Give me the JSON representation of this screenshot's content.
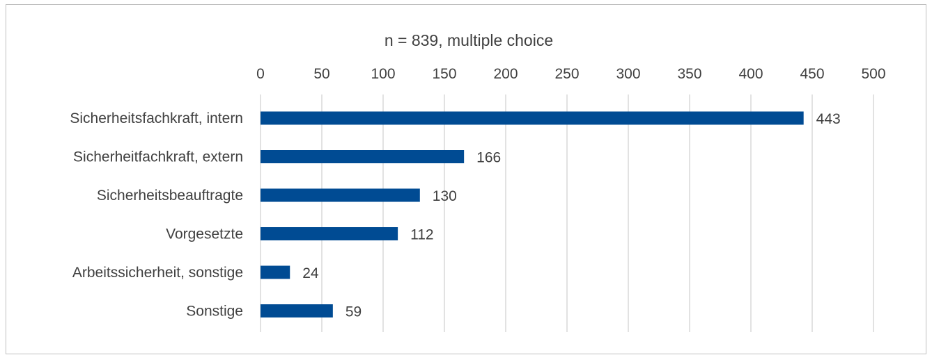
{
  "chart_data": {
    "type": "bar",
    "orientation": "horizontal",
    "subtitle": "n = 839, multiple choice",
    "categories": [
      "Sicherheitsfachkraft, intern",
      "Sicherheitfachkraft, extern",
      "Sicherheitsbeauftragte",
      "Vorgesetzte",
      "Arbeitssicherheit, sonstige",
      "Sonstige"
    ],
    "values": [
      443,
      166,
      130,
      112,
      24,
      59
    ],
    "xlim": [
      0,
      500
    ],
    "x_ticks": [
      "0",
      "50",
      "100",
      "150",
      "200",
      "250",
      "300",
      "350",
      "400",
      "450",
      "500"
    ],
    "x_axis_position": "top",
    "grid": true,
    "legend": false,
    "bar_color": "#004b93",
    "gridline_color": "#d9d9d9",
    "text_color": "#404040"
  }
}
